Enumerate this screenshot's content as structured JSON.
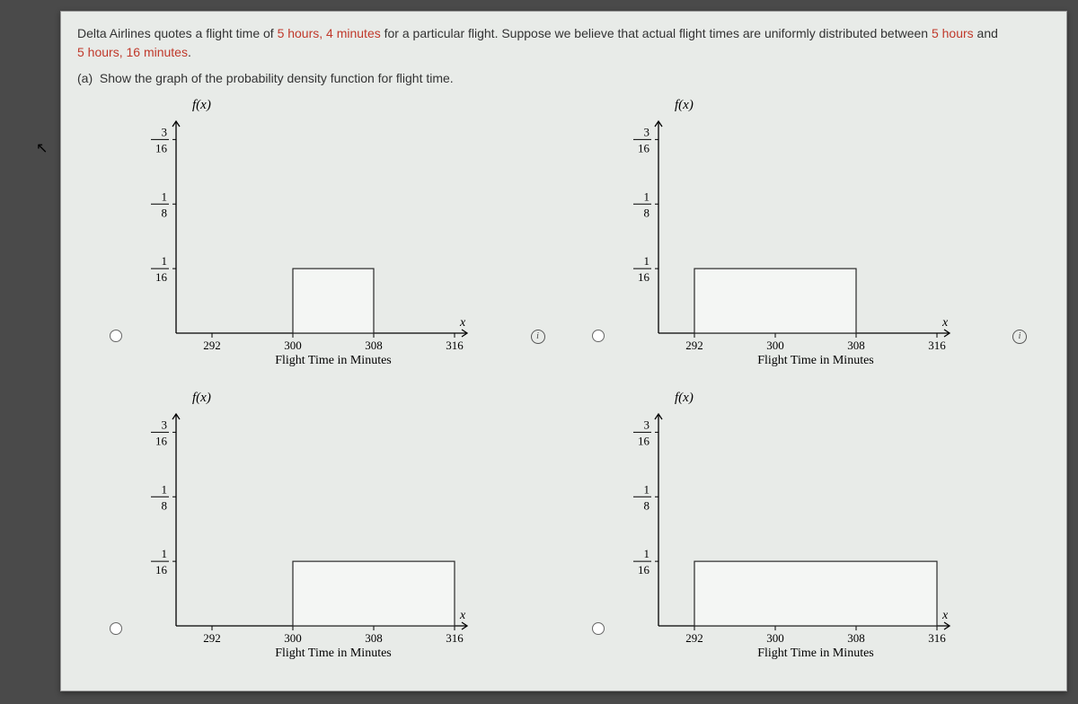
{
  "problem": {
    "line1_prefix": "Delta Airlines quotes a flight time of ",
    "line1_hl1": "5 hours, 4 minutes",
    "line1_mid": " for a particular flight. Suppose we believe that actual flight times are uniformly distributed between ",
    "line1_hl2": "5 hours",
    "line1_and": " and",
    "line2_hl": "5 hours, 16 minutes",
    "line2_end": ".",
    "part_a_label": "(a)",
    "part_a_text": "Show the graph of the probability density function for flight time."
  },
  "chart_common": {
    "fx_label": "f(x)",
    "x_var": "x",
    "x_title": "Flight Time in Minutes",
    "x_ticks": [
      "292",
      "300",
      "308",
      "316"
    ],
    "y_ticks": [
      {
        "num": "3",
        "den": "16"
      },
      {
        "num": "1",
        "den": "8"
      },
      {
        "num": "1",
        "den": "16"
      }
    ],
    "axis_color": "#000000",
    "bar_fill": "#f4f6f4",
    "bar_stroke": "#2a2a2a",
    "grid_bg": "#e8ebe8"
  },
  "charts": [
    {
      "id": "A",
      "bar_start_tick": 1,
      "bar_end_tick": 2,
      "bar_height_level": 1
    },
    {
      "id": "B",
      "bar_start_tick": 0,
      "bar_end_tick": 2,
      "bar_height_level": 1
    },
    {
      "id": "C",
      "bar_start_tick": 1,
      "bar_end_tick": 3,
      "bar_height_level": 1
    },
    {
      "id": "D",
      "bar_start_tick": 0,
      "bar_end_tick": 3,
      "bar_height_level": 1
    }
  ],
  "info_char": "i"
}
